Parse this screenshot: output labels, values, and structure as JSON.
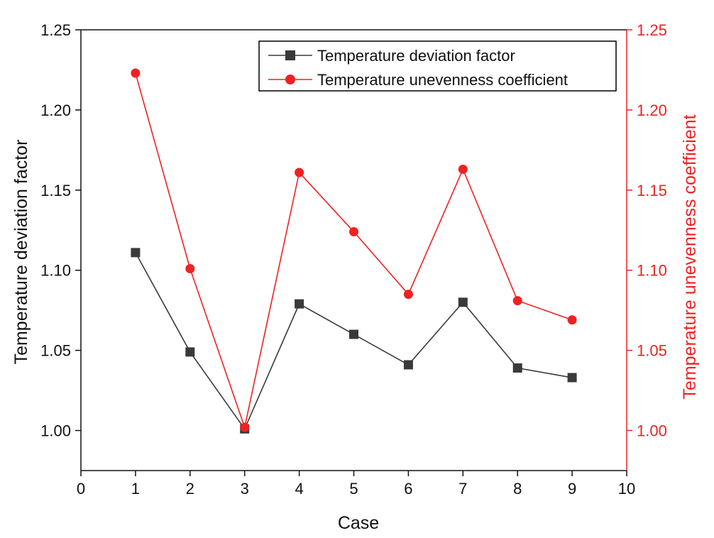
{
  "chart_data": {
    "type": "line",
    "title": "",
    "xlabel": "Case",
    "ylabel_left": "Temperature deviation factor",
    "ylabel_right": "Temperature unevenness coefficient",
    "xlim": [
      0,
      10
    ],
    "ylim_left": [
      0.975,
      1.25
    ],
    "ylim_right": [
      0.975,
      1.25
    ],
    "x_ticks": [
      "0",
      "1",
      "2",
      "3",
      "4",
      "5",
      "6",
      "7",
      "8",
      "9",
      "10"
    ],
    "y_ticks": [
      "1.00",
      "1.05",
      "1.10",
      "1.15",
      "1.20",
      "1.25"
    ],
    "grid": false,
    "legend_position": "top-right",
    "x": [
      1,
      2,
      3,
      4,
      5,
      6,
      7,
      8,
      9
    ],
    "series": [
      {
        "name": "Temperature deviation factor",
        "axis": "left",
        "marker": "square",
        "color": "#3a3a3a",
        "values": [
          1.111,
          1.049,
          1.001,
          1.079,
          1.06,
          1.041,
          1.08,
          1.039,
          1.033
        ]
      },
      {
        "name": "Temperature unevenness coefficient",
        "axis": "right",
        "marker": "circle",
        "color": "#ee2222",
        "values": [
          1.223,
          1.101,
          1.002,
          1.161,
          1.124,
          1.085,
          1.163,
          1.081,
          1.069
        ]
      }
    ]
  },
  "colors": {
    "axis_left": "#111111",
    "axis_right": "#ee2222"
  }
}
